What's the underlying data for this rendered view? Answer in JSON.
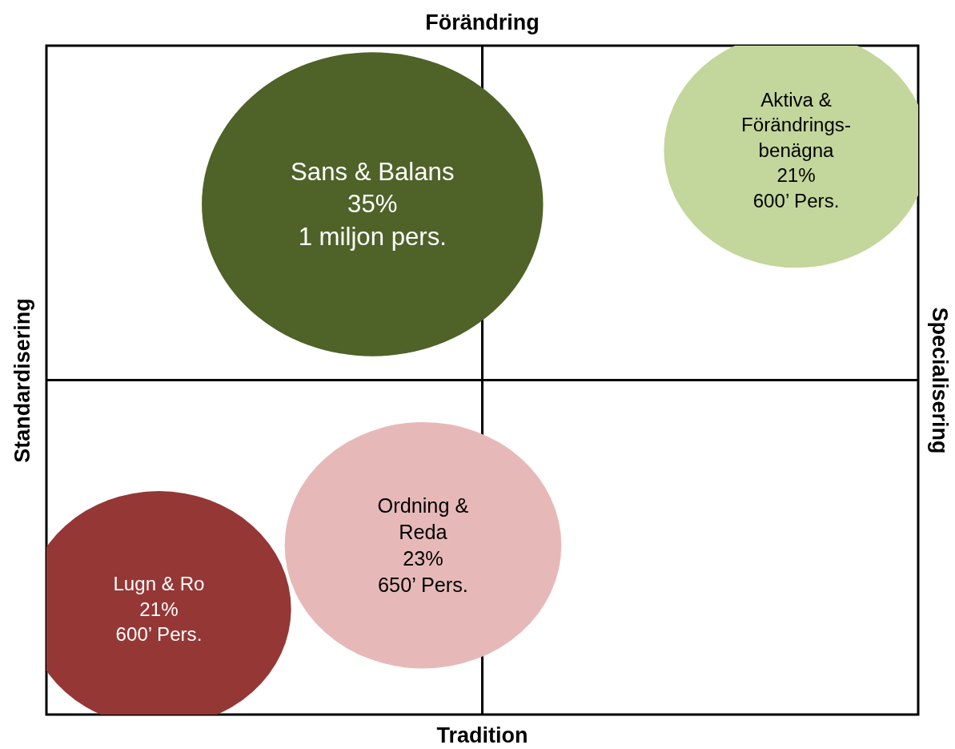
{
  "chart_data": {
    "type": "other",
    "xlabel": "Tradition",
    "x2label": "Förändring",
    "ylabel": "Standardisering",
    "y2label": "Specialisering",
    "categories": [
      "Sans & Balans",
      "Aktiva &\nFörändrings-\nbenägna",
      "Ordning &\nReda",
      "Lugn & Ro"
    ],
    "values": [
      35,
      21,
      23,
      21
    ],
    "colors": [
      "#4f6228",
      "#c3d69b",
      "#e6b9b8",
      "#953735"
    ],
    "value_labels": [
      "35%\n1 miljon pers.",
      "21%\n600’ Pers.",
      "23%\n650’ Pers.",
      "21%\n600’ Pers."
    ]
  }
}
